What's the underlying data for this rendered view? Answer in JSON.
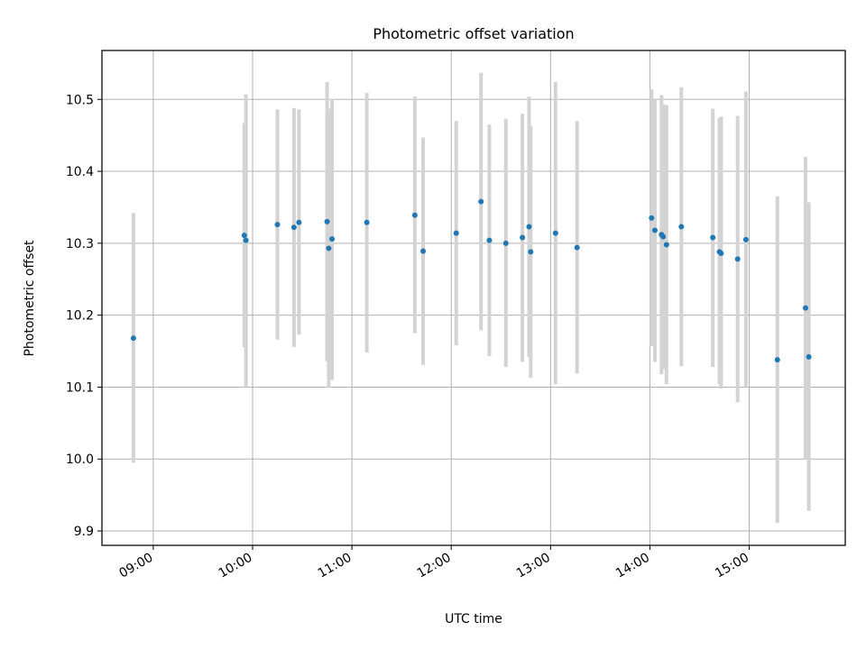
{
  "chart_data": {
    "type": "scatter",
    "title": "Photometric offset variation",
    "xlabel": "UTC time",
    "ylabel": "Photometric offset",
    "x_unit": "UTC time (HH:MM)",
    "xlim": [
      "08:29",
      "15:58"
    ],
    "ylim": [
      9.88,
      10.568
    ],
    "x_ticks": [
      "09:00",
      "10:00",
      "11:00",
      "12:00",
      "13:00",
      "14:00",
      "15:00"
    ],
    "y_ticks": [
      "9.9",
      "10.0",
      "10.1",
      "10.2",
      "10.3",
      "10.4",
      "10.5"
    ],
    "grid": true,
    "colors": {
      "points": "#1f77b4",
      "errorbars": "#d3d3d3",
      "grid": "#b0b0b0"
    },
    "points": [
      {
        "t": "08:48",
        "y": 10.168,
        "lo": 9.995,
        "hi": 10.342
      },
      {
        "t": "09:55",
        "y": 10.311,
        "lo": 10.155,
        "hi": 10.467
      },
      {
        "t": "09:56",
        "y": 10.304,
        "lo": 10.1,
        "hi": 10.507
      },
      {
        "t": "10:15",
        "y": 10.326,
        "lo": 10.166,
        "hi": 10.486
      },
      {
        "t": "10:25",
        "y": 10.322,
        "lo": 10.156,
        "hi": 10.488
      },
      {
        "t": "10:28",
        "y": 10.329,
        "lo": 10.173,
        "hi": 10.486
      },
      {
        "t": "10:45",
        "y": 10.33,
        "lo": 10.136,
        "hi": 10.524
      },
      {
        "t": "10:46",
        "y": 10.293,
        "lo": 10.099,
        "hi": 10.487
      },
      {
        "t": "10:48",
        "y": 10.306,
        "lo": 10.11,
        "hi": 10.501
      },
      {
        "t": "11:09",
        "y": 10.329,
        "lo": 10.148,
        "hi": 10.509
      },
      {
        "t": "11:38",
        "y": 10.339,
        "lo": 10.175,
        "hi": 10.504
      },
      {
        "t": "11:43",
        "y": 10.289,
        "lo": 10.131,
        "hi": 10.447
      },
      {
        "t": "12:03",
        "y": 10.314,
        "lo": 10.158,
        "hi": 10.47
      },
      {
        "t": "12:18",
        "y": 10.358,
        "lo": 10.179,
        "hi": 10.537
      },
      {
        "t": "12:23",
        "y": 10.304,
        "lo": 10.143,
        "hi": 10.465
      },
      {
        "t": "12:33",
        "y": 10.3,
        "lo": 10.128,
        "hi": 10.473
      },
      {
        "t": "12:43",
        "y": 10.308,
        "lo": 10.135,
        "hi": 10.48
      },
      {
        "t": "12:47",
        "y": 10.323,
        "lo": 10.142,
        "hi": 10.504
      },
      {
        "t": "12:48",
        "y": 10.288,
        "lo": 10.113,
        "hi": 10.463
      },
      {
        "t": "13:03",
        "y": 10.314,
        "lo": 10.104,
        "hi": 10.524
      },
      {
        "t": "13:16",
        "y": 10.294,
        "lo": 10.119,
        "hi": 10.47
      },
      {
        "t": "14:01",
        "y": 10.335,
        "lo": 10.157,
        "hi": 10.514
      },
      {
        "t": "14:03",
        "y": 10.318,
        "lo": 10.135,
        "hi": 10.5
      },
      {
        "t": "14:07",
        "y": 10.312,
        "lo": 10.118,
        "hi": 10.506
      },
      {
        "t": "14:08",
        "y": 10.309,
        "lo": 10.125,
        "hi": 10.493
      },
      {
        "t": "14:10",
        "y": 10.298,
        "lo": 10.104,
        "hi": 10.492
      },
      {
        "t": "14:19",
        "y": 10.323,
        "lo": 10.129,
        "hi": 10.517
      },
      {
        "t": "14:38",
        "y": 10.308,
        "lo": 10.128,
        "hi": 10.487
      },
      {
        "t": "14:42",
        "y": 10.288,
        "lo": 10.104,
        "hi": 10.474
      },
      {
        "t": "14:43",
        "y": 10.286,
        "lo": 10.098,
        "hi": 10.476
      },
      {
        "t": "14:53",
        "y": 10.278,
        "lo": 10.079,
        "hi": 10.477
      },
      {
        "t": "14:58",
        "y": 10.305,
        "lo": 10.1,
        "hi": 10.511
      },
      {
        "t": "15:17",
        "y": 10.138,
        "lo": 9.911,
        "hi": 10.365
      },
      {
        "t": "15:34",
        "y": 10.21,
        "lo": 10.0,
        "hi": 10.42
      },
      {
        "t": "15:36",
        "y": 10.142,
        "lo": 9.928,
        "hi": 10.357
      }
    ]
  }
}
